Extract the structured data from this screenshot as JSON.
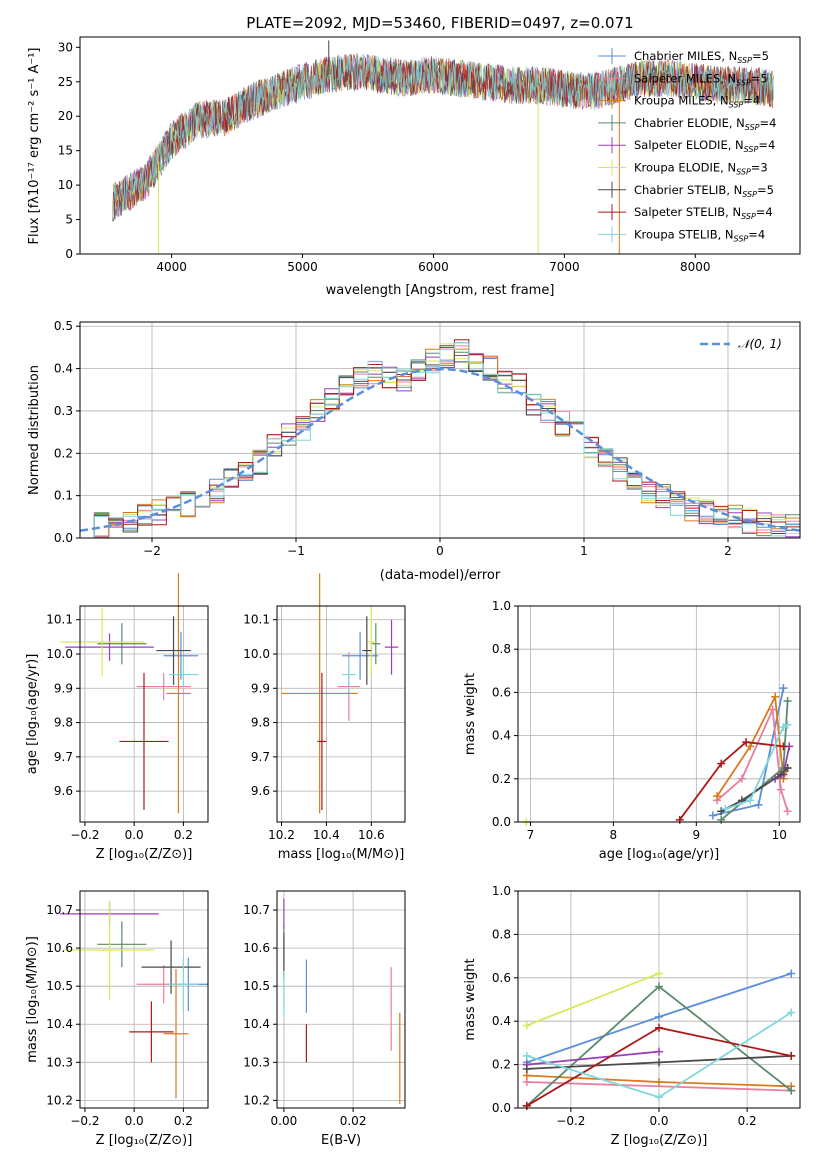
{
  "palette": [
    "#5b8fd9",
    "#e8862a",
    "#d97a1e",
    "#5a8a6a",
    "#9a3fb5",
    "#d9e85a",
    "#4a4a4a",
    "#aa1a1a",
    "#7fd6dc"
  ],
  "top": {
    "title": "PLATE=2092, MJD=53460, FIBERID=0497, z=0.071",
    "xlabel": "wavelength [Angstrom, rest frame]",
    "ylabel": "Flux [fλ10⁻¹⁷ erg cm⁻² s⁻¹ A⁻¹]",
    "xticks": [
      "4000",
      "5000",
      "6000",
      "7000",
      "8000"
    ],
    "yticks": [
      "0",
      "5",
      "10",
      "15",
      "20",
      "25",
      "30"
    ],
    "legend": [
      {
        "label": "Chabrier MILES, N",
        "sub": "SSP",
        "suffix": "=5",
        "color": "#5b8fd9"
      },
      {
        "label": "Salpeter MILES, N",
        "sub": "SSP",
        "suffix": "=5",
        "color": "#e87fa0"
      },
      {
        "label": "Kroupa MILES, N",
        "sub": "SSP",
        "suffix": "=4",
        "color": "#d97a1e"
      },
      {
        "label": "Chabrier ELODIE, N",
        "sub": "SSP",
        "suffix": "=4",
        "color": "#5a8a6a"
      },
      {
        "label": "Salpeter ELODIE, N",
        "sub": "SSP",
        "suffix": "=4",
        "color": "#9a3fb5"
      },
      {
        "label": "Kroupa ELODIE, N",
        "sub": "SSP",
        "suffix": "=3",
        "color": "#d9e85a"
      },
      {
        "label": "Chabrier STELIB, N",
        "sub": "SSP",
        "suffix": "=5",
        "color": "#4a4a4a"
      },
      {
        "label": "Salpeter STELIB, N",
        "sub": "SSP",
        "suffix": "=4",
        "color": "#aa1a1a"
      },
      {
        "label": "Kroupa STELIB, N",
        "sub": "SSP",
        "suffix": "=4",
        "color": "#7fd6dc"
      }
    ]
  },
  "hist": {
    "xlabel": "(data-model)/error",
    "ylabel": "Normed distribution",
    "xticks": [
      "−2",
      "−1",
      "0",
      "1",
      "2"
    ],
    "yticks": [
      "0.0",
      "0.1",
      "0.2",
      "0.3",
      "0.4",
      "0.5"
    ],
    "legend": "𝒩(0, 1)"
  },
  "panels": {
    "age_vs_Z": {
      "ylabel": "age  [log₁₀(age/yr)]",
      "xlabel": "Z [log₁₀(Z/Z⊙)]",
      "xticks": [
        "−0.2",
        "0.0",
        "0.2"
      ],
      "yticks": [
        "9.6",
        "9.7",
        "9.8",
        "9.9",
        "10.0",
        "10.1"
      ]
    },
    "age_vs_mass": {
      "xlabel": "mass [log₁₀(M/M⊙)]",
      "xticks": [
        "10.2",
        "10.4",
        "10.6"
      ],
      "yticks": [
        "9.6",
        "9.7",
        "9.8",
        "9.9",
        "10.0",
        "10.1"
      ]
    },
    "mw_vs_age": {
      "ylabel": "mass weight",
      "xlabel": "age  [log₁₀(age/yr)]",
      "xticks": [
        "7",
        "8",
        "9",
        "10"
      ],
      "yticks": [
        "0.0",
        "0.2",
        "0.4",
        "0.6",
        "0.8",
        "1.0"
      ]
    },
    "mass_vs_Z": {
      "ylabel": "mass [log₁₀(M/M⊙)]",
      "xlabel": "Z [log₁₀(Z/Z⊙)]",
      "xticks": [
        "−0.2",
        "0.0",
        "0.2"
      ],
      "yticks": [
        "10.2",
        "10.3",
        "10.4",
        "10.5",
        "10.6",
        "10.7"
      ]
    },
    "mass_vs_ebv": {
      "xlabel": "E(B-V)",
      "xticks": [
        "0.00",
        "0.02"
      ],
      "yticks": [
        "10.2",
        "10.3",
        "10.4",
        "10.5",
        "10.6",
        "10.7"
      ]
    },
    "mw_vs_Z": {
      "ylabel": "mass weight",
      "xlabel": "Z [log₁₀(Z/Z⊙)]",
      "xticks": [
        "−0.2",
        "0.0",
        "0.2"
      ],
      "yticks": [
        "0.0",
        "0.2",
        "0.4",
        "0.6",
        "0.8",
        "1.0"
      ]
    }
  },
  "chart_data": [
    {
      "type": "line",
      "title": "PLATE=2092, MJD=53460, FIBERID=0497, z=0.071",
      "xlabel": "wavelength [Angstrom, rest frame]",
      "ylabel": "Flux [fλ10⁻¹⁷ erg cm⁻² s⁻¹ A⁻¹]",
      "xlim": [
        3300,
        8800
      ],
      "ylim": [
        0,
        31.5
      ],
      "x": [
        3550,
        3800,
        4000,
        4200,
        4400,
        4600,
        4800,
        5000,
        5200,
        5400,
        5600,
        5800,
        6000,
        6200,
        6400,
        6600,
        6800,
        7000,
        7200,
        7400,
        7600,
        7800,
        8000,
        8200,
        8400,
        8600
      ],
      "y": [
        7.5,
        10.5,
        16.5,
        19.5,
        19.8,
        22.0,
        23.5,
        25.0,
        26.0,
        26.5,
        26.0,
        25.5,
        26.0,
        25.5,
        25.0,
        24.5,
        24.5,
        24.0,
        23.5,
        24.5,
        25.5,
        25.5,
        25.0,
        24.5,
        24.5,
        24.0
      ],
      "series": [
        {
          "name": "Chabrier MILES, N_SSP=5"
        },
        {
          "name": "Salpeter MILES, N_SSP=5"
        },
        {
          "name": "Kroupa MILES, N_SSP=4"
        },
        {
          "name": "Chabrier ELODIE, N_SSP=4"
        },
        {
          "name": "Salpeter ELODIE, N_SSP=4"
        },
        {
          "name": "Kroupa ELODIE, N_SSP=3"
        },
        {
          "name": "Chabrier STELIB, N_SSP=5"
        },
        {
          "name": "Salpeter STELIB, N_SSP=4"
        },
        {
          "name": "Kroupa STELIB, N_SSP=4"
        }
      ]
    },
    {
      "type": "line",
      "xlabel": "(data-model)/error",
      "ylabel": "Normed distribution",
      "xlim": [
        -2.5,
        2.5
      ],
      "ylim": [
        0,
        0.51
      ],
      "bins": [
        -2.5,
        -2.4,
        -2.3,
        -2.2,
        -2.1,
        -2.0,
        -1.9,
        -1.8,
        -1.7,
        -1.6,
        -1.5,
        -1.4,
        -1.3,
        -1.2,
        -1.1,
        -1.0,
        -0.9,
        -0.8,
        -0.7,
        -0.6,
        -0.5,
        -0.4,
        -0.3,
        -0.2,
        -0.1,
        0.0,
        0.1,
        0.2,
        0.3,
        0.4,
        0.5,
        0.6,
        0.7,
        0.8,
        0.9,
        1.0,
        1.1,
        1.2,
        1.3,
        1.4,
        1.5,
        1.6,
        1.7,
        1.8,
        1.9,
        2.0,
        2.1,
        2.2,
        2.3,
        2.4
      ],
      "counts": [
        0.02,
        0.03,
        0.03,
        0.04,
        0.05,
        0.06,
        0.07,
        0.08,
        0.1,
        0.11,
        0.14,
        0.16,
        0.18,
        0.22,
        0.24,
        0.26,
        0.3,
        0.33,
        0.36,
        0.38,
        0.39,
        0.38,
        0.37,
        0.4,
        0.42,
        0.43,
        0.44,
        0.41,
        0.4,
        0.37,
        0.36,
        0.32,
        0.3,
        0.27,
        0.25,
        0.21,
        0.19,
        0.16,
        0.13,
        0.11,
        0.1,
        0.08,
        0.07,
        0.06,
        0.05,
        0.05,
        0.04,
        0.03,
        0.03,
        0.03
      ],
      "series": [
        {
          "name": "𝒩(0, 1)",
          "style": "dashed"
        }
      ]
    },
    {
      "type": "scatter",
      "xlabel": "Z [log₁₀(Z/Z⊙)]",
      "ylabel": "age  [log₁₀(age/yr)]",
      "xlim": [
        -0.22,
        0.3
      ],
      "ylim": [
        9.51,
        10.14
      ],
      "points": [
        {
          "x": 0.19,
          "y": 9.995,
          "xerr": 0.07,
          "yerr": 0.07
        },
        {
          "x": 0.12,
          "y": 9.905,
          "xerr": 0.11,
          "yerr": 0.04
        },
        {
          "x": 0.18,
          "y": 9.885,
          "xerr": 0.05,
          "yerr": 0.35
        },
        {
          "x": -0.05,
          "y": 10.03,
          "xerr": 0.1,
          "yerr": 0.06
        },
        {
          "x": -0.1,
          "y": 10.02,
          "xerr": 0.18,
          "yerr": 0.04
        },
        {
          "x": -0.13,
          "y": 10.035,
          "xerr": 0.17,
          "yerr": 0.1
        },
        {
          "x": 0.16,
          "y": 10.01,
          "xerr": 0.07,
          "yerr": 0.1
        },
        {
          "x": 0.04,
          "y": 9.745,
          "xerr": 0.1,
          "yerr": 0.2
        },
        {
          "x": 0.2,
          "y": 9.94,
          "xerr": 0.06,
          "yerr": 0.05
        }
      ]
    },
    {
      "type": "scatter",
      "xlabel": "mass [log₁₀(M/M⊙)]",
      "xlim": [
        10.18,
        10.75
      ],
      "ylim": [
        9.51,
        10.14
      ],
      "points": [
        {
          "x": 10.55,
          "y": 9.995,
          "xerr": 0.08,
          "yerr": 0.07
        },
        {
          "x": 10.5,
          "y": 9.905,
          "xerr": 0.05,
          "yerr": 0.1
        },
        {
          "x": 10.37,
          "y": 9.885,
          "xerr": 0.17,
          "yerr": 0.35
        },
        {
          "x": 10.62,
          "y": 10.03,
          "xerr": 0.02,
          "yerr": 0.06
        },
        {
          "x": 10.69,
          "y": 10.02,
          "xerr": 0.03,
          "yerr": 0.08
        },
        {
          "x": 10.6,
          "y": 10.035,
          "xerr": 0.02,
          "yerr": 0.1
        },
        {
          "x": 10.58,
          "y": 10.01,
          "xerr": 0.02,
          "yerr": 0.1
        },
        {
          "x": 10.38,
          "y": 9.745,
          "xerr": 0.02,
          "yerr": 0.2
        },
        {
          "x": 10.5,
          "y": 9.94,
          "xerr": 0.03,
          "yerr": 0.05
        }
      ]
    },
    {
      "type": "line",
      "xlabel": "age  [log₁₀(age/yr)]",
      "ylabel": "mass weight",
      "xlim": [
        6.85,
        10.25
      ],
      "ylim": [
        0,
        1.0
      ],
      "series": [
        {
          "x": [
            9.2,
            9.75,
            10.05
          ],
          "y": [
            0.03,
            0.08,
            0.62
          ]
        },
        {
          "x": [
            9.25,
            9.55,
            9.92,
            10.02,
            10.1
          ],
          "y": [
            0.1,
            0.2,
            0.52,
            0.15,
            0.05
          ]
        },
        {
          "x": [
            9.25,
            9.65,
            9.95,
            10.05,
            10.1
          ],
          "y": [
            0.12,
            0.35,
            0.58,
            0.2,
            0.25
          ]
        },
        {
          "x": [
            9.3,
            10.05,
            10.1
          ],
          "y": [
            0.01,
            0.25,
            0.56
          ]
        },
        {
          "x": [
            9.95,
            10.05,
            10.12
          ],
          "y": [
            0.2,
            0.22,
            0.35
          ]
        },
        {
          "x": 6.95,
          "y": 0.0
        },
        {
          "x": [
            9.3,
            9.55,
            10.02,
            10.1
          ],
          "y": [
            0.05,
            0.1,
            0.22,
            0.25
          ]
        },
        {
          "x": [
            8.8,
            9.3,
            9.6,
            10.05
          ],
          "y": [
            0.01,
            0.27,
            0.37,
            0.35
          ]
        },
        {
          "x": [
            9.35,
            9.65,
            10.05,
            10.1
          ],
          "y": [
            0.06,
            0.1,
            0.44,
            0.45
          ]
        }
      ]
    },
    {
      "type": "scatter",
      "xlabel": "Z [log₁₀(Z/Z⊙)]",
      "ylabel": "mass [log₁₀(M/M⊙)]",
      "xlim": [
        -0.22,
        0.3
      ],
      "ylim": [
        10.18,
        10.75
      ],
      "points": [
        {
          "x": 0.22,
          "y": 10.505,
          "xerr": 0.08,
          "yerr": 0.07
        },
        {
          "x": 0.12,
          "y": 10.505,
          "xerr": 0.11,
          "yerr": 0.05
        },
        {
          "x": 0.17,
          "y": 10.375,
          "xerr": 0.05,
          "yerr": 0.17
        },
        {
          "x": -0.05,
          "y": 10.61,
          "xerr": 0.1,
          "yerr": 0.06
        },
        {
          "x": -0.1,
          "y": 10.69,
          "xerr": 0.2,
          "yerr": 0.03
        },
        {
          "x": -0.1,
          "y": 10.595,
          "xerr": 0.18,
          "yerr": 0.13
        },
        {
          "x": 0.15,
          "y": 10.55,
          "xerr": 0.12,
          "yerr": 0.07
        },
        {
          "x": 0.07,
          "y": 10.38,
          "xerr": 0.09,
          "yerr": 0.08
        },
        {
          "x": 0.2,
          "y": 10.505,
          "xerr": 0.06,
          "yerr": 0.07
        }
      ]
    },
    {
      "type": "scatter",
      "xlabel": "E(B-V)",
      "xlim": [
        -0.002,
        0.035
      ],
      "ylim": [
        10.18,
        10.75
      ],
      "points": [
        {
          "x": 0.0065,
          "y": 10.5,
          "yerr": 0.07
        },
        {
          "x": 0.031,
          "y": 10.44,
          "yerr": 0.11
        },
        {
          "x": 0.0335,
          "y": 10.31,
          "yerr": 0.12
        },
        {
          "x": 0.0,
          "y": 10.61,
          "yerr": 0.05
        },
        {
          "x": 0.0,
          "y": 10.69,
          "yerr": 0.04
        },
        {
          "x": 0.0,
          "y": 10.53,
          "yerr": 0.08
        },
        {
          "x": 0.0,
          "y": 10.58,
          "yerr": 0.06
        },
        {
          "x": 0.0065,
          "y": 10.35,
          "yerr": 0.05
        },
        {
          "x": 0.0,
          "y": 10.48,
          "yerr": 0.06
        }
      ]
    },
    {
      "type": "line",
      "xlabel": "Z [log₁₀(Z/Z⊙)]",
      "ylabel": "mass weight",
      "xlim": [
        -0.32,
        0.32
      ],
      "ylim": [
        0,
        1.0
      ],
      "series": [
        {
          "x": [
            -0.3,
            0.0,
            0.3
          ],
          "y": [
            0.21,
            0.42,
            0.62
          ]
        },
        {
          "x": [
            -0.3,
            0.3
          ],
          "y": [
            0.12,
            0.08
          ]
        },
        {
          "x": [
            -0.3,
            0.0,
            0.3
          ],
          "y": [
            0.15,
            0.12,
            0.1
          ]
        },
        {
          "x": [
            -0.3,
            0.0,
            0.3
          ],
          "y": [
            0.01,
            0.56,
            0.08
          ]
        },
        {
          "x": [
            -0.3,
            0.0
          ],
          "y": [
            0.2,
            0.26
          ]
        },
        {
          "x": [
            -0.3,
            0.0
          ],
          "y": [
            0.38,
            0.62
          ]
        },
        {
          "x": [
            -0.3,
            0.0,
            0.3
          ],
          "y": [
            0.18,
            0.21,
            0.24
          ]
        },
        {
          "x": [
            -0.3,
            0.0,
            0.3
          ],
          "y": [
            0.01,
            0.37,
            0.24
          ]
        },
        {
          "x": [
            -0.3,
            0.0,
            0.3
          ],
          "y": [
            0.24,
            0.05,
            0.44
          ]
        }
      ]
    }
  ]
}
